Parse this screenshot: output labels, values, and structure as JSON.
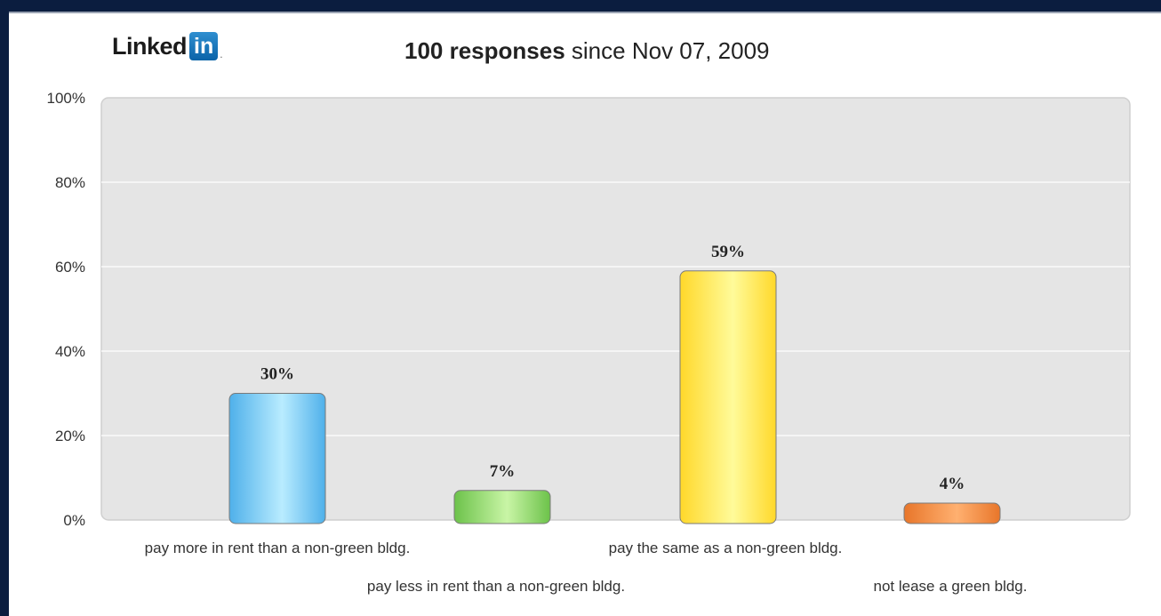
{
  "header": {
    "logo_word": "Linked",
    "logo_box": "in",
    "logo_mark": ".",
    "count_label": "100 responses",
    "since_label": "since Nov 07, 2009"
  },
  "colors": {
    "background": "#0b1d3f",
    "plot_area": "#e5e5e5",
    "bar_blue": "#4fb0ea",
    "bar_green": "#6cc24a",
    "bar_yellow": "#ffd82a",
    "bar_orange": "#e8762a"
  },
  "chart_data": {
    "type": "bar",
    "title": "",
    "xlabel": "",
    "ylabel": "",
    "ylim": [
      0,
      100
    ],
    "y_ticks": [
      "0%",
      "20%",
      "40%",
      "60%",
      "80%",
      "100%"
    ],
    "grid": true,
    "categories": [
      "pay more in rent than a non-green bldg.",
      "pay less in rent than a non-green bldg.",
      "pay the same as a non-green bldg.",
      "not lease a green bldg."
    ],
    "values": [
      30,
      7,
      59,
      4
    ],
    "value_labels": [
      "30%",
      "7%",
      "59%",
      "4%"
    ]
  }
}
